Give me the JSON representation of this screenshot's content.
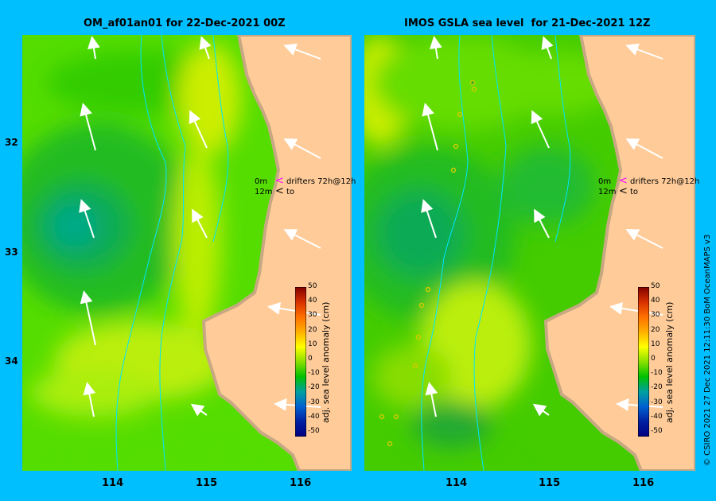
{
  "titles": {
    "left": "OM_af01an01 for 22-Dec-2021 00Z",
    "right": "IMOS GSLA sea level  for 21-Dec-2021 12Z"
  },
  "axes": {
    "y_ticks": [
      "32",
      "33",
      "34"
    ],
    "x_ticks": [
      "114",
      "115",
      "116"
    ]
  },
  "legend": {
    "line1_label": "0m",
    "line1_text": "drifters 72h@12h",
    "line2_label": "12m",
    "line2_text": "to"
  },
  "colorbar": {
    "label": "adj. sea level anomaly (cm)",
    "ticks": [
      "50",
      "40",
      "30",
      "20",
      "10",
      "0",
      "-10",
      "-20",
      "-30",
      "-40",
      "-50"
    ]
  },
  "credit": "© CSIRO 2021   27 Dec 2021 12:11:30 BoM OceanMAPS v3",
  "colors": {
    "background": "#00bfff",
    "land": "#ffcc99",
    "coast": "#c8a882",
    "marker": "#ff00ff"
  },
  "chart_data": [
    {
      "type": "heatmap",
      "title": "OM_af01an01 for 22-Dec-2021 00Z",
      "x_ticks": [
        114,
        115,
        116
      ],
      "y_ticks": [
        32,
        33,
        34
      ],
      "colorbar_label": "adj. sea level anomaly (cm)",
      "colorbar_range": [
        -50,
        50
      ]
    },
    {
      "type": "heatmap",
      "title": "IMOS GSLA sea level  for 21-Dec-2021 12Z",
      "x_ticks": [
        114,
        115,
        116
      ],
      "y_ticks": [
        32,
        33,
        34
      ],
      "colorbar_label": "adj. sea level anomaly (cm)",
      "colorbar_range": [
        -50,
        50
      ]
    }
  ]
}
